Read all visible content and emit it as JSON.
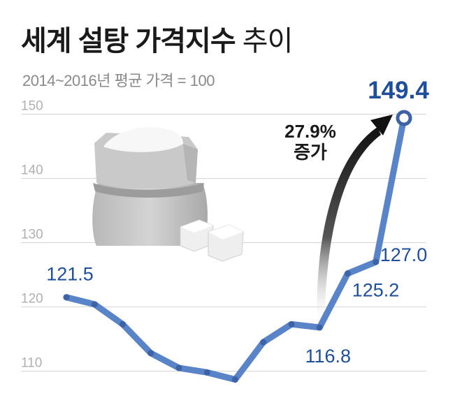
{
  "title_bold": "세계 설탕 가격지수",
  "title_light": "추이",
  "subtitle": "2014~2016년 평균 가격 = 100",
  "colors": {
    "line": "#5a84c8",
    "dot": "#3d63a6",
    "label": "#1f4f9a",
    "axis": "#b0b0b0",
    "grid": "#d6d6d6",
    "arrow": "#222222"
  },
  "icons": [
    "sugar-sack-icon",
    "sugar-cubes-icon"
  ],
  "chart_data": {
    "type": "line",
    "title": "세계 설탕 가격지수 추이",
    "subtitle": "2014~2016년 평균 가격 = 100",
    "ylim": [
      108,
      152
    ],
    "yticks": [
      110,
      120,
      130,
      140,
      150
    ],
    "grid": true,
    "series": [
      {
        "values": [
          121.5,
          120.4,
          117.3,
          112.8,
          110.5,
          109.8,
          108.7,
          114.5,
          117.3,
          116.8,
          125.2,
          127.0,
          149.4
        ]
      }
    ],
    "data_labels": [
      {
        "index": 0,
        "text": "121.5"
      },
      {
        "index": 9,
        "text": "116.8"
      },
      {
        "index": 10,
        "text": "125.2"
      },
      {
        "index": 11,
        "text": "127.0"
      },
      {
        "index": 12,
        "text": "149.4"
      }
    ],
    "annotation": {
      "lines": [
        "27.9%",
        "증가"
      ]
    }
  }
}
